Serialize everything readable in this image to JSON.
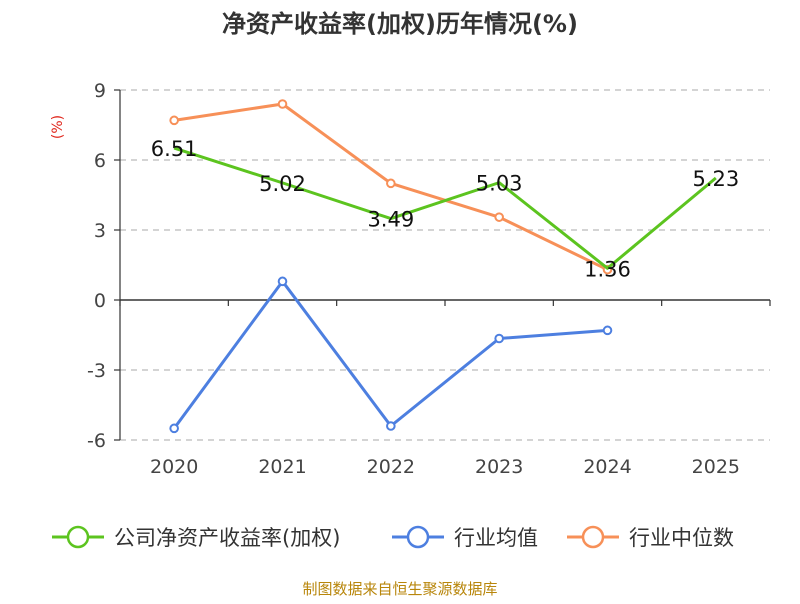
{
  "chart_data": {
    "type": "line",
    "title": "净资产收益率(加权)历年情况(%)",
    "ylabel": "(%)",
    "xlabel": "",
    "categories": [
      "2020",
      "2021",
      "2022",
      "2023",
      "2024",
      "2025"
    ],
    "y_ticks": [
      9,
      6,
      3,
      0,
      -3,
      -6
    ],
    "y_tick_labels": [
      "9",
      "6",
      "3",
      "0",
      "-3",
      "-6"
    ],
    "ylim": [
      -6,
      9
    ],
    "grid": true,
    "legend_position": "bottom",
    "series": [
      {
        "name": "公司净资产收益率(加权)",
        "color": "#5cc41f",
        "values": [
          6.51,
          5.02,
          3.49,
          5.03,
          1.36,
          5.23
        ],
        "labels": [
          "6.51",
          "5.02",
          "3.49",
          "5.03",
          "1.36",
          "5.23"
        ],
        "markers": false
      },
      {
        "name": "行业均值",
        "color": "#4d7fe0",
        "values": [
          -5.5,
          0.8,
          -5.4,
          -1.65,
          -1.3,
          null
        ],
        "markers": true
      },
      {
        "name": "行业中位数",
        "color": "#f79058",
        "values": [
          7.7,
          8.4,
          5.0,
          3.55,
          1.3,
          null
        ],
        "markers": true
      }
    ]
  },
  "source_note": "制图数据来自恒生聚源数据库",
  "colors": {
    "title": "#333333",
    "axis_label": "#e0281e",
    "source_note": "#b8860b",
    "grid": "#bbbbbb",
    "axis": "#333333"
  }
}
